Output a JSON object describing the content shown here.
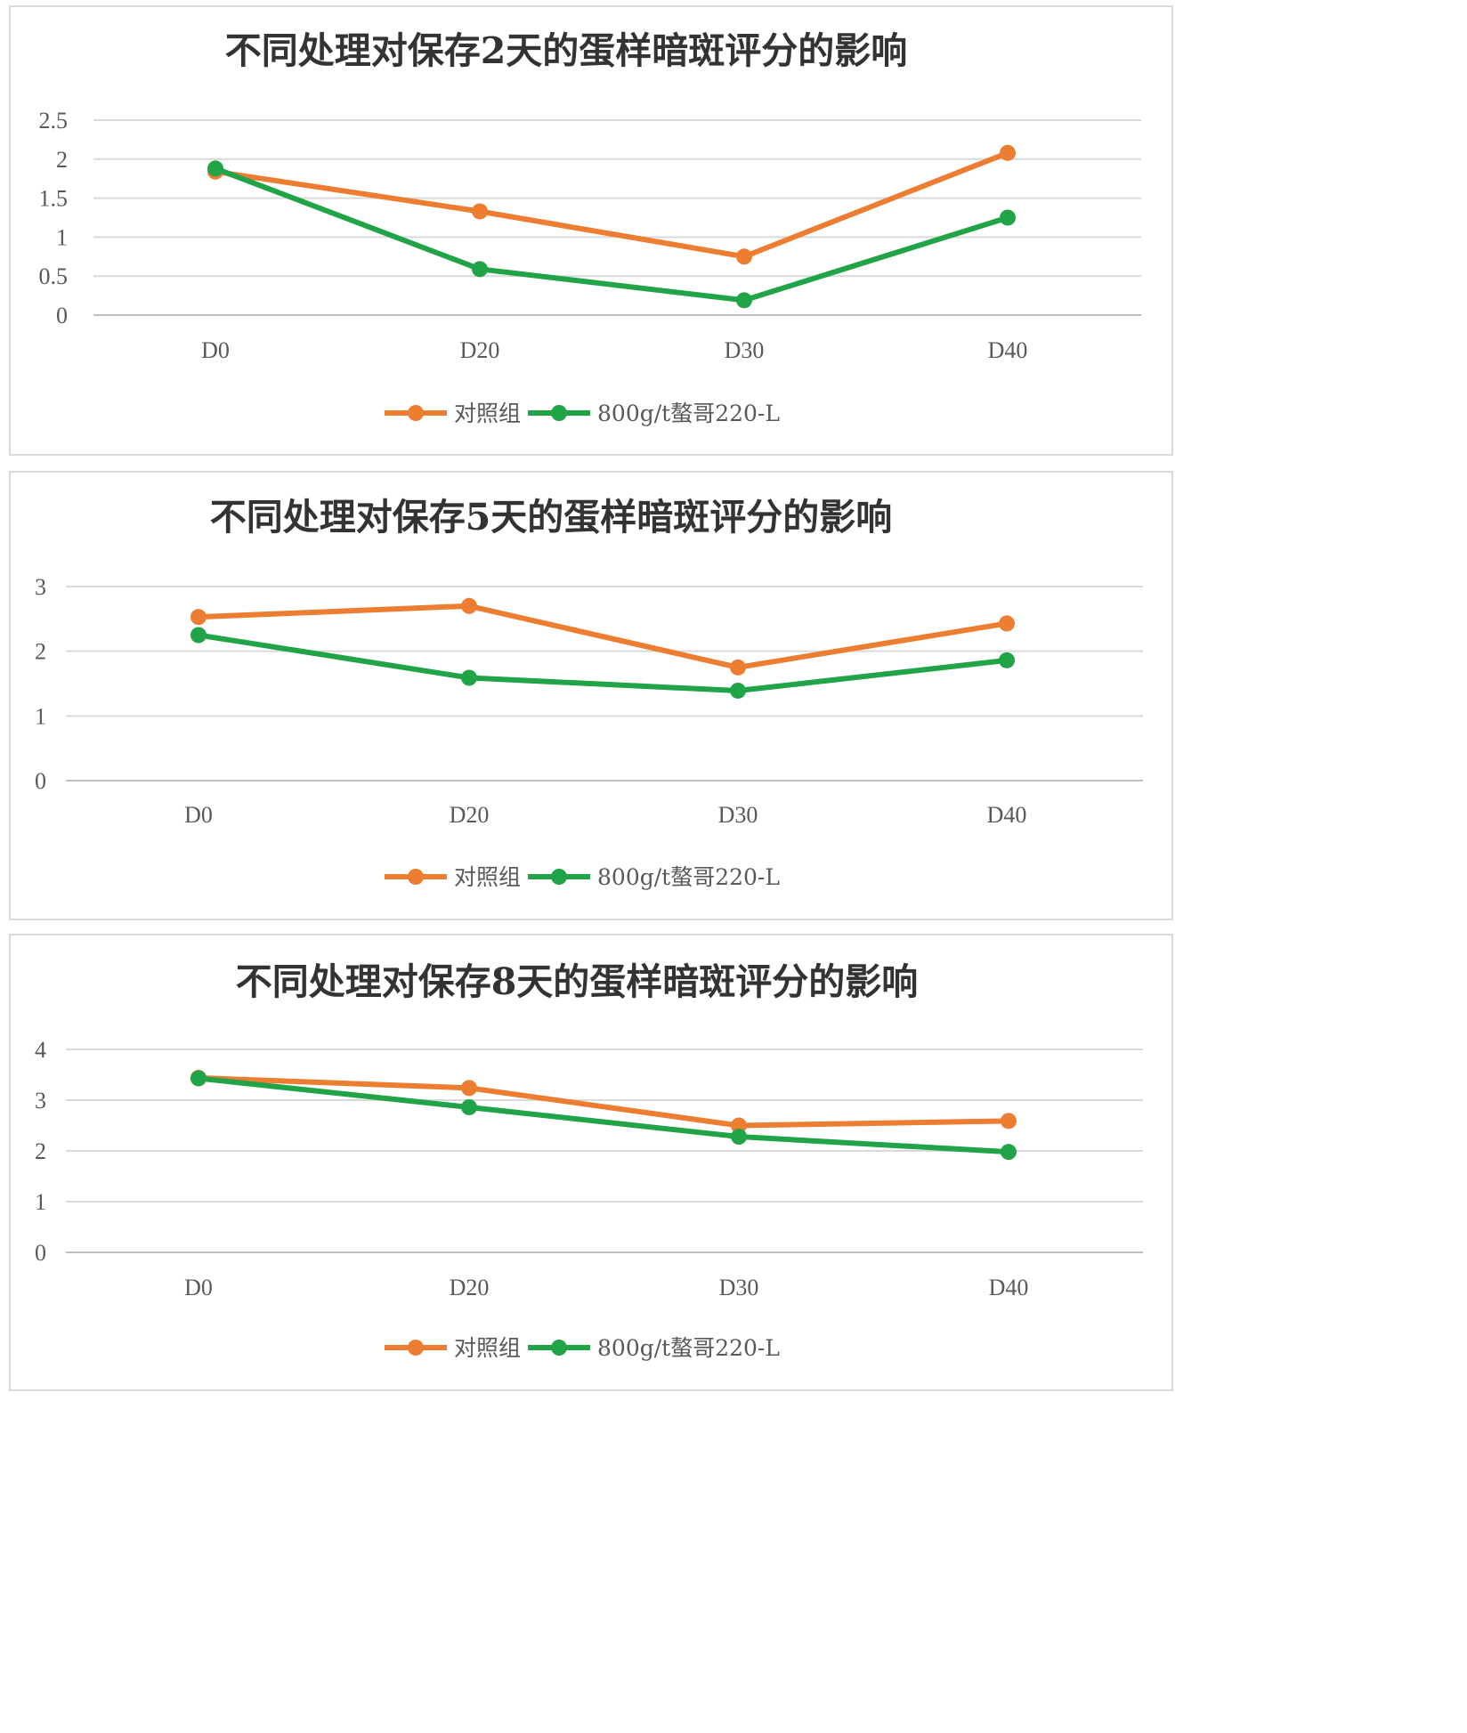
{
  "chart_data": [
    {
      "type": "line",
      "title": "不同处理对保存2天的蛋样暗斑评分的影响",
      "categories": [
        "D0",
        "D20",
        "D30",
        "D40"
      ],
      "ylim": [
        0,
        2.5
      ],
      "yticks": [
        "0",
        "0.5",
        "1",
        "1.5",
        "2",
        "2.5"
      ],
      "grid": true,
      "legend": "bottom",
      "series": [
        {
          "name": "对照组",
          "color": "#ED7D31",
          "values": [
            1.84,
            1.33,
            0.75,
            2.08
          ]
        },
        {
          "name": "800g/t螯哥220-L",
          "color": "#21A447",
          "values": [
            1.88,
            0.59,
            0.19,
            1.25
          ]
        }
      ]
    },
    {
      "type": "line",
      "title": "不同处理对保存5天的蛋样暗斑评分的影响",
      "categories": [
        "D0",
        "D20",
        "D30",
        "D40"
      ],
      "ylim": [
        0,
        3
      ],
      "yticks": [
        "0",
        "1",
        "2",
        "3"
      ],
      "grid": true,
      "legend": "bottom",
      "series": [
        {
          "name": "对照组",
          "color": "#ED7D31",
          "values": [
            2.53,
            2.7,
            1.75,
            2.43
          ]
        },
        {
          "name": "800g/t螯哥220-L",
          "color": "#21A447",
          "values": [
            2.25,
            1.59,
            1.39,
            1.86
          ]
        }
      ]
    },
    {
      "type": "line",
      "title": "不同处理对保存8天的蛋样暗斑评分的影响",
      "categories": [
        "D0",
        "D20",
        "D30",
        "D40"
      ],
      "ylim": [
        0,
        4
      ],
      "yticks": [
        "0",
        "1",
        "2",
        "3",
        "4"
      ],
      "grid": true,
      "legend": "bottom",
      "series": [
        {
          "name": "对照组",
          "color": "#ED7D31",
          "values": [
            3.44,
            3.24,
            2.5,
            2.59
          ]
        },
        {
          "name": "800g/t螯哥220-L",
          "color": "#21A447",
          "values": [
            3.43,
            2.86,
            2.28,
            1.98
          ]
        }
      ]
    }
  ]
}
